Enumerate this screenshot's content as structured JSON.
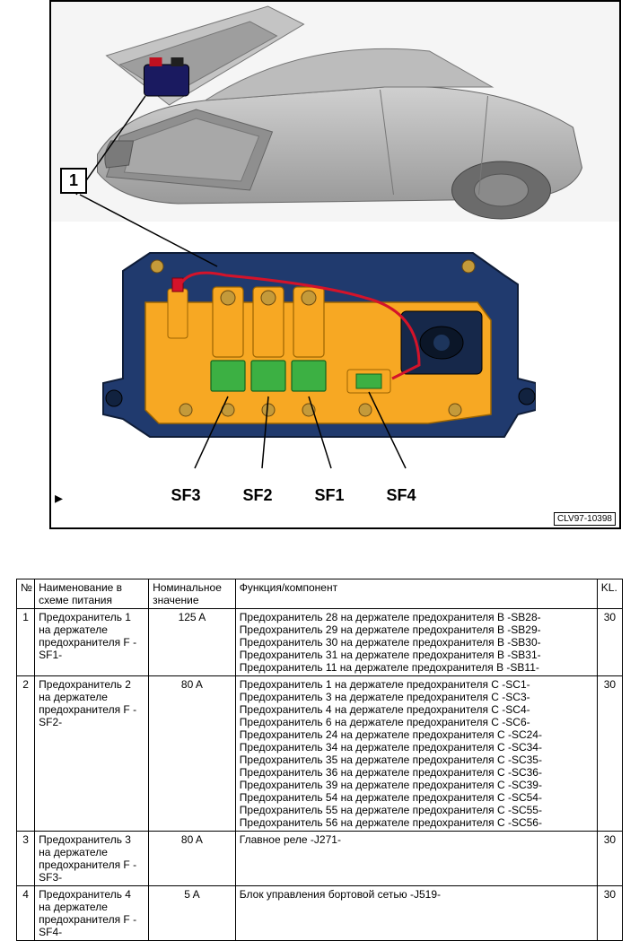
{
  "figure": {
    "callout": "1",
    "labels": [
      "SF3",
      "SF2",
      "SF1",
      "SF4"
    ],
    "code": "CLV97-10398",
    "colors": {
      "car_body": "#b8b8b8",
      "car_shadow": "#8a8a8a",
      "battery": "#1a1a60",
      "fusebox_body": "#203a6e",
      "fusebox_plate": "#f7a823",
      "fuse_green": "#3cb043",
      "fuse_red_wire": "#d4132a",
      "bolt": "#c49a3a"
    }
  },
  "table": {
    "headers": {
      "num": "№",
      "name": "Наименование в схеме питания",
      "nom": "Номинальное значение",
      "func": "Функция/компонент",
      "kl": "KL."
    },
    "rows": [
      {
        "num": "1",
        "name": "Предохранитель 1 на держателе предохранителя F -SF1-",
        "nom": "125 A",
        "func": "Предохранитель 28 на держателе предохранителя B -SB28- Предохранитель 29 на держателе предохранителя B -SB29- Предохранитель 30 на держателе предохранителя B -SB30- Предохранитель 31 на держателе предохранителя B -SB31- Предохранитель 11 на держателе предохранителя B -SB11-",
        "kl": "30"
      },
      {
        "num": "2",
        "name": "Предохранитель 2 на держателе предохранителя F -SF2-",
        "nom": "80 A",
        "func": "Предохранитель 1 на держателе предохранителя C -SC1- Предохранитель 3 на держателе предохранителя C -SC3- Предохранитель 4 на держателе предохранителя C -SC4- Предохранитель 6 на держателе предохранителя C -SC6- Предохранитель 24 на держателе предохранителя C -SC24- Предохранитель 34 на держателе предохранителя C -SC34- Предохранитель 35 на держателе предохранителя C -SC35- Предохранитель 36 на держателе предохранителя C -SC36- Предохранитель 39 на держателе предохранителя C -SC39- Предохранитель 54 на держателе предохранителя C -SC54- Предохранитель 55 на держателе предохранителя C -SC55- Предохранитель 56 на держателе предохранителя C -SC56-",
        "kl": "30"
      },
      {
        "num": "3",
        "name": "Предохранитель 3 на держателе предохранителя F -SF3-",
        "nom": "80 A",
        "func": "Главное реле -J271-",
        "kl": "30"
      },
      {
        "num": "4",
        "name": "Предохранитель 4 на держателе предохранителя F -SF4-",
        "nom": "5 A",
        "func": "Блок управления бортовой сетью -J519-",
        "kl": "30"
      }
    ]
  }
}
